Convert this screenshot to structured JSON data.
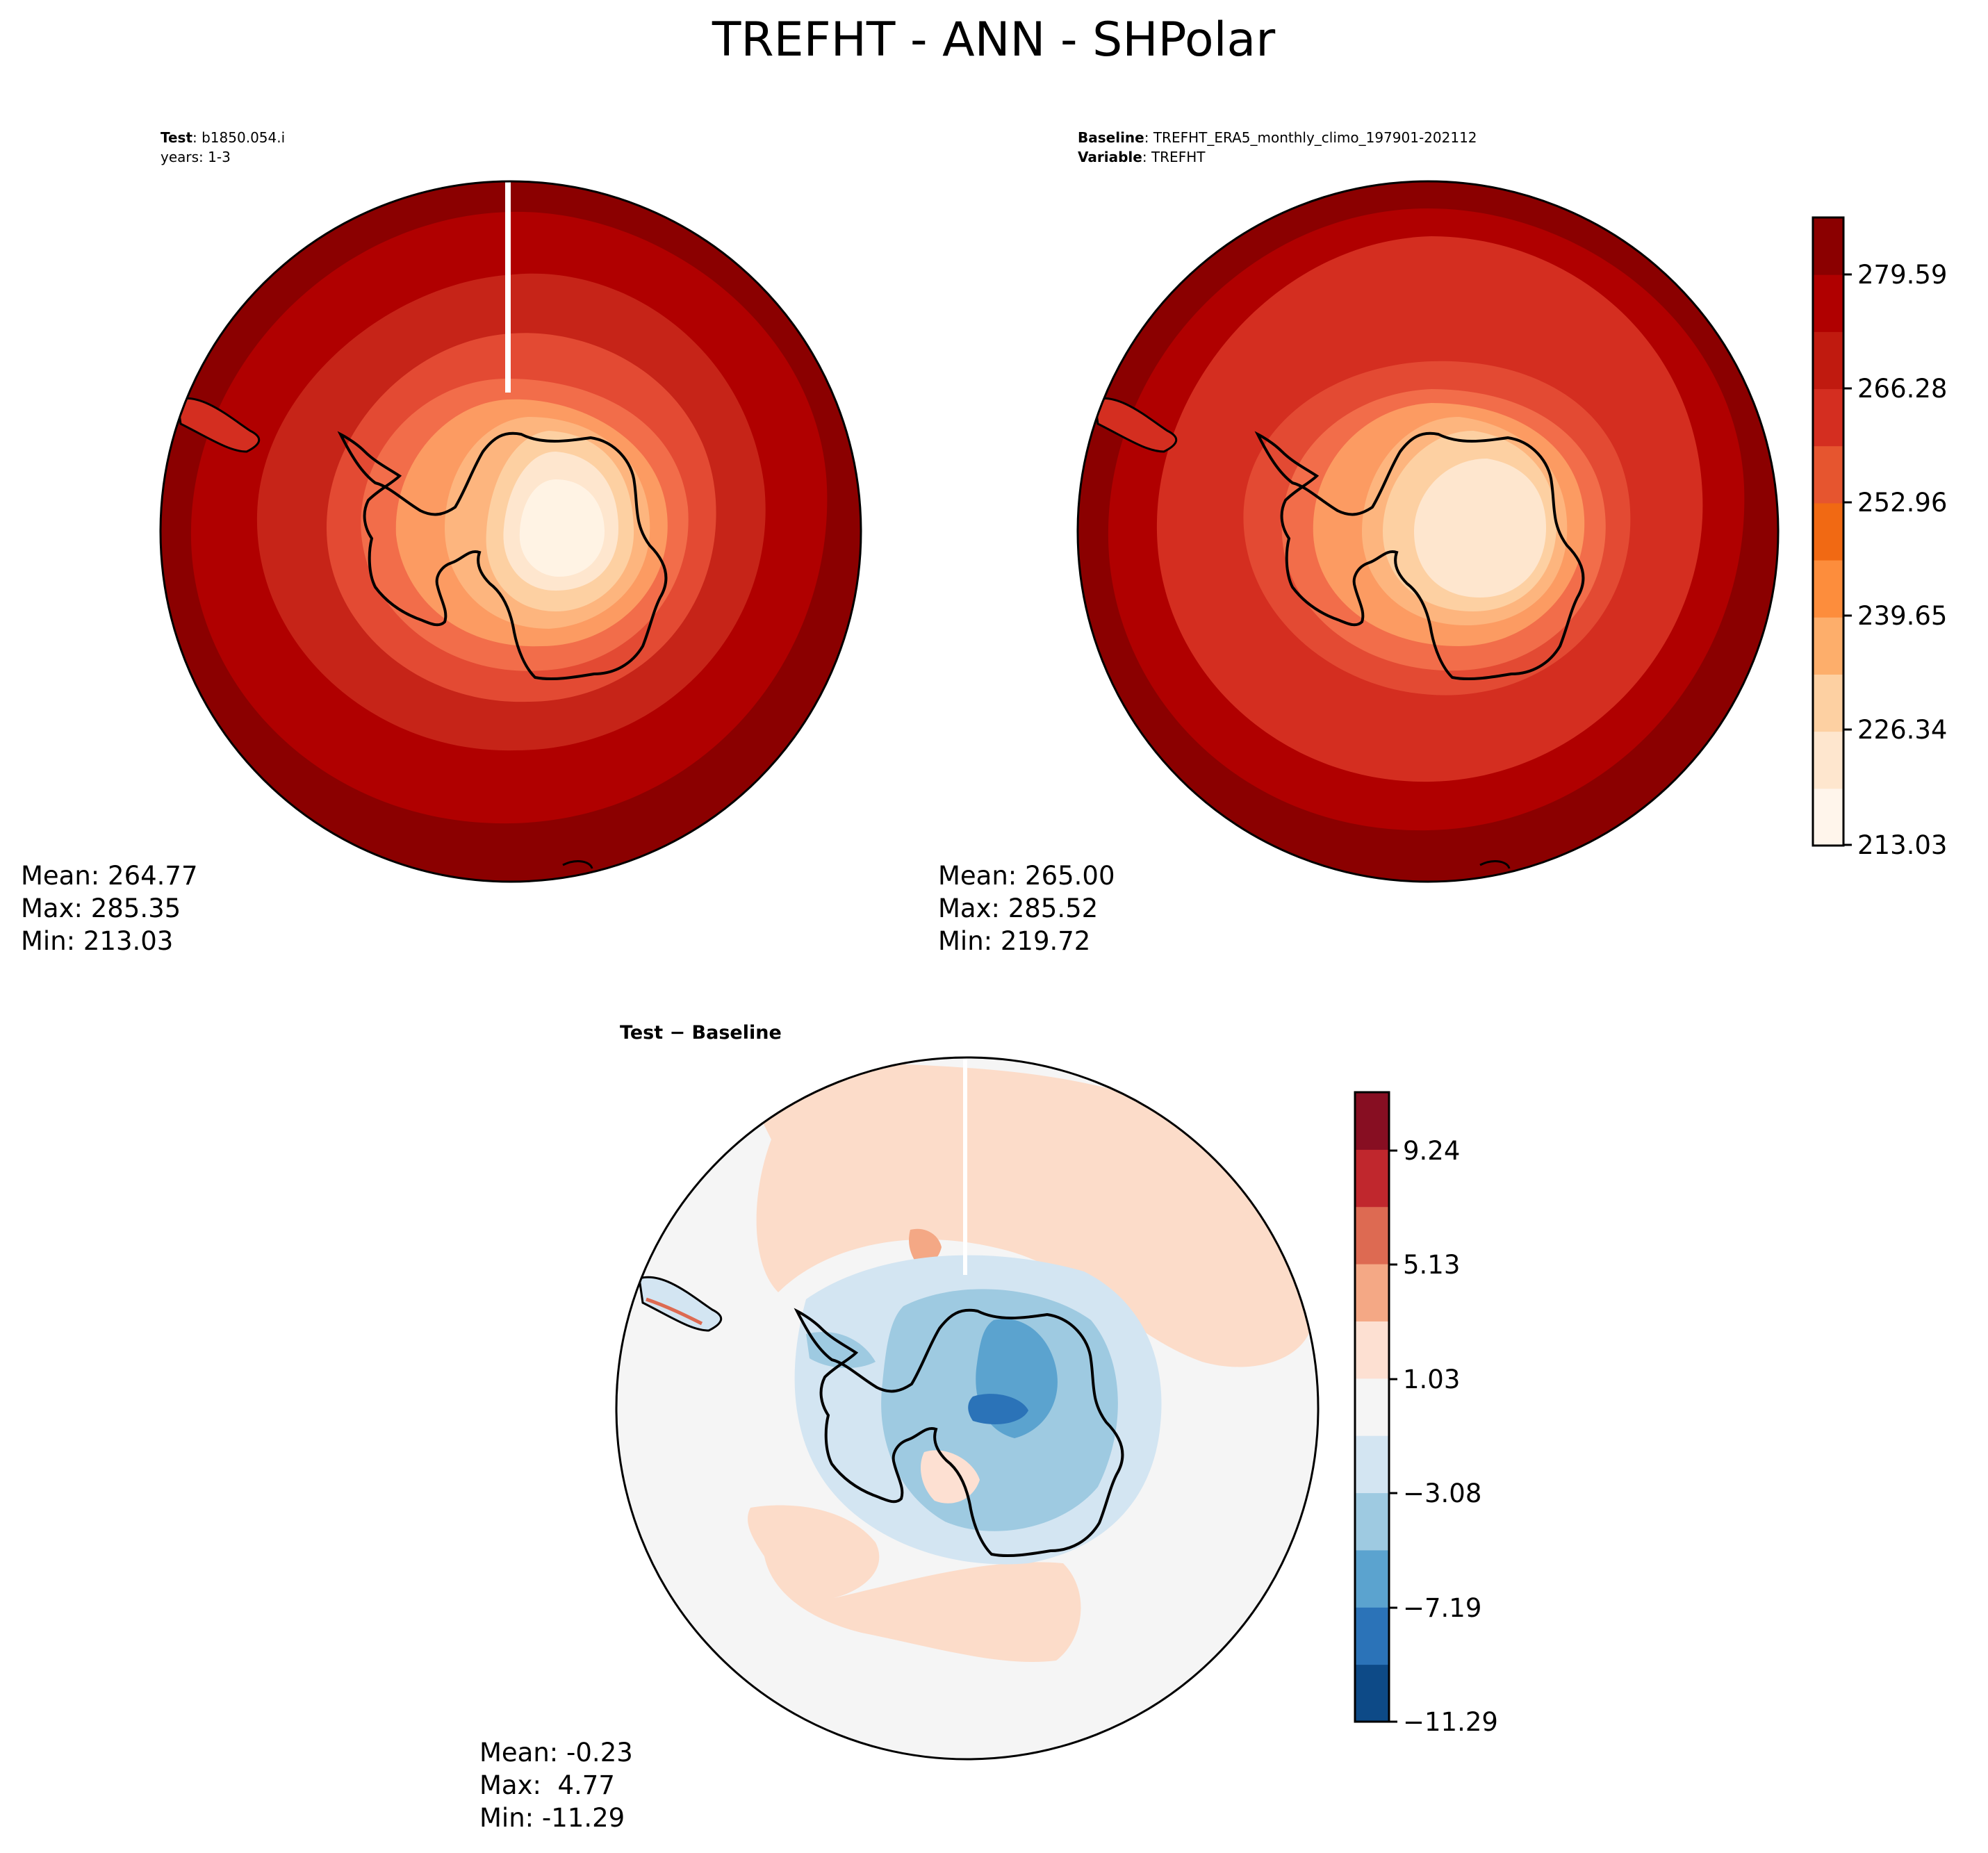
{
  "title": "TREFHT - ANN - SHPolar",
  "panels": {
    "test": {
      "label_key": "Test",
      "label_value": ": b1850.054.i",
      "line2": "years: 1-3",
      "stats": {
        "mean": "Mean: 264.77",
        "max": "Max: 285.35",
        "min": "Min: 213.03"
      }
    },
    "baseline": {
      "label_key": "Baseline",
      "label_value": ": TREFHT_ERA5_monthly_climo_197901-202112",
      "var_key": "Variable",
      "var_value": ": TREFHT",
      "stats": {
        "mean": "Mean: 265.00",
        "max": "Max: 285.52",
        "min": "Min: 219.72"
      }
    },
    "diff": {
      "label": "Test − Baseline",
      "stats": {
        "mean": "Mean: -0.23",
        "max": "Max:  4.77",
        "min": "Min: -11.29"
      }
    }
  },
  "colorbar_main": {
    "ticks": [
      "279.59",
      "266.28",
      "252.96",
      "239.65",
      "226.34",
      "213.03"
    ],
    "colors": [
      "#fff5eb",
      "#fee6ce",
      "#fdd0a2",
      "#fdae6b",
      "#fd8d3c",
      "#f16913",
      "#e6552f",
      "#d42e20",
      "#c01a0f",
      "#b00000",
      "#8b0000"
    ]
  },
  "colorbar_diff": {
    "ticks": [
      "9.24",
      "5.13",
      "1.03",
      "−3.08",
      "−7.19",
      "−11.29"
    ],
    "colors": [
      "#0d4a87",
      "#2b73b8",
      "#5ba3cf",
      "#9ecae1",
      "#d3e5f2",
      "#f5f5f5",
      "#fde0d2",
      "#f4a885",
      "#dd6a52",
      "#c0272d",
      "#870e22"
    ]
  }
}
